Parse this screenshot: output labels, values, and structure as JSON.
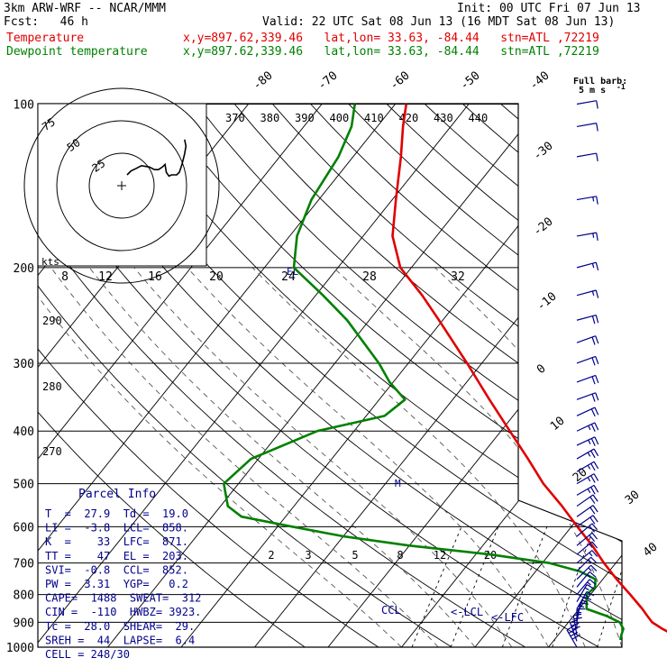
{
  "header": {
    "model": "3km ARW-WRF -- NCAR/MMM",
    "init": "Init: 00 UTC Fri 07 Jun 13",
    "fcst": "Fcst:   46 h",
    "valid": "Valid: 22 UTC Sat 08 Jun 13 (16 MDT Sat 08 Jun 13)",
    "temp_label": "Temperature",
    "temp_info": "x,y=897.62,339.46   lat,lon= 33.63, -84.44   stn=ATL ,72219",
    "dew_label": "Dewpoint temperature",
    "dew_info": "x,y=897.62,339.46   lat,lon= 33.63, -84.44   stn=ATL ,72219"
  },
  "barb_note": {
    "line1": "Full barb:",
    "line2": "5 m s",
    "sup": "-1"
  },
  "colors": {
    "temperature": "#e00000",
    "dewpoint": "#008000",
    "info": "#00008b",
    "barbs": "#00008b"
  },
  "chart_data": {
    "type": "line",
    "pressure_levels": [
      {
        "p": 100,
        "label": "100"
      },
      {
        "p": 200,
        "label": "200"
      },
      {
        "p": 300,
        "label": "300"
      },
      {
        "p": 400,
        "label": "400"
      },
      {
        "p": 500,
        "label": "500"
      },
      {
        "p": 600,
        "label": "600"
      },
      {
        "p": 700,
        "label": "700"
      },
      {
        "p": 800,
        "label": "800"
      },
      {
        "p": 900,
        "label": "900"
      },
      {
        "p": 1000,
        "label": "1000"
      }
    ],
    "temperature_labels": [
      "-80",
      "-70",
      "-60",
      "-50",
      "-40",
      "-30",
      "-20",
      "-10",
      "0",
      "10",
      "20",
      "30",
      "40"
    ],
    "theta_labels": [
      "370",
      "380",
      "390",
      "400",
      "410",
      "420",
      "430",
      "440"
    ],
    "mixing_ratio_labels": [
      "2",
      "3",
      "5",
      "8",
      "12",
      "20"
    ],
    "hodograph_ring_labels": [
      "75",
      "50",
      "25"
    ],
    "hodograph_axis_label": "kts",
    "hodograph_speed_ticks": [
      "8",
      "12",
      "16",
      "20",
      "24",
      "28",
      "32"
    ],
    "small_labels": {
      "theta_290": "290",
      "theta_280": "280",
      "theta_270": "270",
      "lcl": "LCL",
      "lfc": "<-LFC",
      "ccl": "CCL",
      "m": "M",
      "el": "EL"
    },
    "series": [
      {
        "name": "Temperature",
        "points": [
          [
            970,
            27.9
          ],
          [
            950,
            25.8
          ],
          [
            925,
            23.5
          ],
          [
            900,
            21.4
          ],
          [
            875,
            20.0
          ],
          [
            850,
            18.6
          ],
          [
            800,
            15.4
          ],
          [
            750,
            11.9
          ],
          [
            700,
            8.4
          ],
          [
            650,
            4.9
          ],
          [
            600,
            0.8
          ],
          [
            550,
            -3.5
          ],
          [
            500,
            -8.5
          ],
          [
            450,
            -13.3
          ],
          [
            400,
            -18.8
          ],
          [
            350,
            -25.0
          ],
          [
            300,
            -32.0
          ],
          [
            250,
            -40.5
          ],
          [
            225,
            -45.5
          ],
          [
            200,
            -51.5
          ],
          [
            175,
            -56.0
          ],
          [
            150,
            -59.5
          ],
          [
            125,
            -63.5
          ],
          [
            110,
            -66.5
          ],
          [
            100,
            -68.5
          ]
        ]
      },
      {
        "name": "Dewpoint temperature",
        "points": [
          [
            970,
            19.0
          ],
          [
            950,
            18.6
          ],
          [
            925,
            18.2
          ],
          [
            900,
            17.0
          ],
          [
            875,
            14.4
          ],
          [
            850,
            11.0
          ],
          [
            800,
            9.5
          ],
          [
            775,
            9.8
          ],
          [
            750,
            9.0
          ],
          [
            725,
            6.0
          ],
          [
            700,
            1.0
          ],
          [
            675,
            -8.0
          ],
          [
            650,
            -20.0
          ],
          [
            625,
            -30.0
          ],
          [
            600,
            -38.0
          ],
          [
            575,
            -46.0
          ],
          [
            550,
            -49.0
          ],
          [
            500,
            -52.0
          ],
          [
            450,
            -51.0
          ],
          [
            400,
            -45.0
          ],
          [
            375,
            -37.5
          ],
          [
            350,
            -36.5
          ],
          [
            325,
            -40.5
          ],
          [
            300,
            -44.0
          ],
          [
            250,
            -53.0
          ],
          [
            225,
            -59.0
          ],
          [
            200,
            -66.0
          ],
          [
            175,
            -69.0
          ],
          [
            150,
            -71.0
          ],
          [
            125,
            -72.0
          ],
          [
            110,
            -73.5
          ],
          [
            100,
            -75.5
          ]
        ]
      }
    ],
    "hodograph": [
      [
        0,
        0
      ],
      [
        3,
        3
      ],
      [
        7,
        5
      ],
      [
        11,
        7
      ],
      [
        17,
        6
      ],
      [
        21,
        4
      ],
      [
        24,
        4
      ],
      [
        27,
        6
      ],
      [
        29,
        8
      ],
      [
        30,
        2
      ],
      [
        32,
        -1
      ],
      [
        34,
        0
      ],
      [
        38,
        0
      ],
      [
        40,
        2
      ],
      [
        42,
        8
      ],
      [
        44,
        16
      ],
      [
        45,
        22
      ],
      [
        44,
        27
      ]
    ],
    "wind_barbs": [
      {
        "p": 1000,
        "speed": 40,
        "dir": 150
      },
      {
        "p": 975,
        "speed": 30,
        "dir": 160
      },
      {
        "p": 950,
        "speed": 20,
        "dir": 170
      },
      {
        "p": 925,
        "speed": 15,
        "dir": 180
      },
      {
        "p": 900,
        "speed": 15,
        "dir": 190
      },
      {
        "p": 875,
        "speed": 15,
        "dir": 200
      },
      {
        "p": 850,
        "speed": 15,
        "dir": 210
      },
      {
        "p": 825,
        "speed": 15,
        "dir": 210
      },
      {
        "p": 800,
        "speed": 15,
        "dir": 220
      },
      {
        "p": 775,
        "speed": 15,
        "dir": 220
      },
      {
        "p": 750,
        "speed": 15,
        "dir": 225
      },
      {
        "p": 725,
        "speed": 15,
        "dir": 225
      },
      {
        "p": 700,
        "speed": 15,
        "dir": 230
      },
      {
        "p": 675,
        "speed": 15,
        "dir": 230
      },
      {
        "p": 650,
        "speed": 20,
        "dir": 230
      },
      {
        "p": 625,
        "speed": 20,
        "dir": 230
      },
      {
        "p": 600,
        "speed": 20,
        "dir": 235
      },
      {
        "p": 575,
        "speed": 20,
        "dir": 235
      },
      {
        "p": 550,
        "speed": 20,
        "dir": 235
      },
      {
        "p": 525,
        "speed": 25,
        "dir": 240
      },
      {
        "p": 500,
        "speed": 25,
        "dir": 240
      },
      {
        "p": 475,
        "speed": 25,
        "dir": 240
      },
      {
        "p": 450,
        "speed": 25,
        "dir": 240
      },
      {
        "p": 425,
        "speed": 25,
        "dir": 245
      },
      {
        "p": 400,
        "speed": 25,
        "dir": 245
      },
      {
        "p": 375,
        "speed": 20,
        "dir": 245
      },
      {
        "p": 350,
        "speed": 20,
        "dir": 250
      },
      {
        "p": 325,
        "speed": 20,
        "dir": 250
      },
      {
        "p": 300,
        "speed": 20,
        "dir": 250
      },
      {
        "p": 275,
        "speed": 20,
        "dir": 250
      },
      {
        "p": 250,
        "speed": 20,
        "dir": 255
      },
      {
        "p": 225,
        "speed": 15,
        "dir": 255
      },
      {
        "p": 200,
        "speed": 15,
        "dir": 255
      },
      {
        "p": 175,
        "speed": 15,
        "dir": 260
      },
      {
        "p": 150,
        "speed": 15,
        "dir": 260
      },
      {
        "p": 125,
        "speed": 10,
        "dir": 260
      },
      {
        "p": 110,
        "speed": 10,
        "dir": 260
      },
      {
        "p": 100,
        "speed": 10,
        "dir": 260
      }
    ]
  },
  "parcel_info": {
    "title": "Parcel Info",
    "rows": [
      "T  =  27.9  Td =  19.0",
      "LI =  -3.8  LCL=  858.",
      "K  =    33  LFC=  871.",
      "TT =    47  EL =  203.",
      "SVI=  -0.8  CCL=  852.",
      "PW =  3.31  YGP=   0.2",
      "CAPE=  1488  SWEAT=  312",
      "CIN =  -110  HWBZ= 3923.",
      "Tc =  28.0  SHEAR=  29.",
      "SREH =  44  LAPSE=  6.4",
      "CELL = 248/30"
    ]
  }
}
